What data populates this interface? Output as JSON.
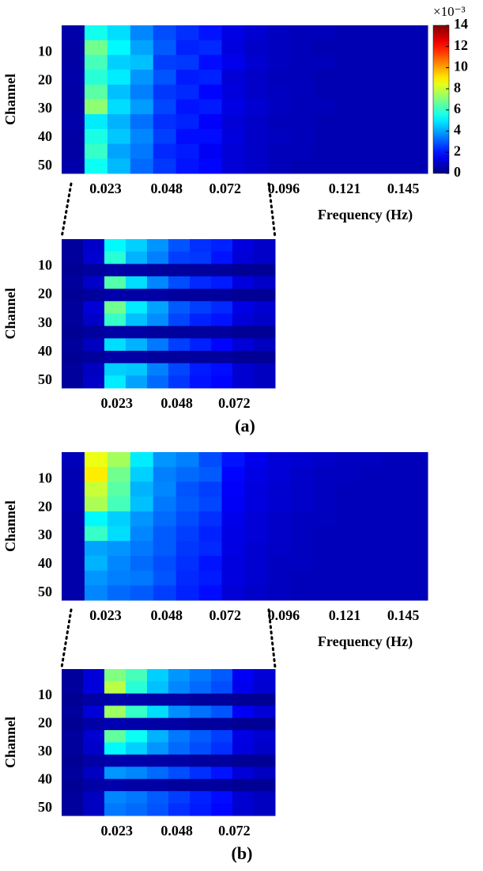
{
  "figure": {
    "captions": [
      "(a)",
      "(b)"
    ]
  },
  "chart_data": [
    {
      "type": "heatmap",
      "ylabel": "Channel",
      "xlabel": "Frequency (Hz)",
      "colormap": "jet",
      "xlim": [
        0.005,
        0.155
      ],
      "ylim": [
        0.5,
        52.5
      ],
      "xticks": [
        0.023,
        0.048,
        0.072,
        0.096,
        0.121,
        0.145
      ],
      "yticks": [
        10,
        20,
        30,
        40,
        50
      ],
      "colorbar": {
        "label": "×10⁻³",
        "clim": [
          0,
          14
        ],
        "ticks": [
          0,
          2,
          4,
          6,
          8,
          10,
          12,
          14
        ]
      },
      "values": [
        [
          0.6,
          5.5,
          4.8,
          3.6,
          2.8,
          2.4,
          2.0,
          1.4,
          1.1,
          0.9,
          0.8,
          0.8,
          0.7,
          0.7,
          0.7,
          0.7
        ],
        [
          0.5,
          6.8,
          5.2,
          4.0,
          3.0,
          2.2,
          2.3,
          1.3,
          1.0,
          0.9,
          0.8,
          0.7,
          0.7,
          0.7,
          0.7,
          0.7
        ],
        [
          0.5,
          6.2,
          4.6,
          4.4,
          2.6,
          2.5,
          1.9,
          1.5,
          1.1,
          0.9,
          0.8,
          0.8,
          0.7,
          0.7,
          0.7,
          0.7
        ],
        [
          0.6,
          5.8,
          5.0,
          3.8,
          2.9,
          2.1,
          2.2,
          1.2,
          1.0,
          0.8,
          0.8,
          0.7,
          0.7,
          0.7,
          0.7,
          0.7
        ],
        [
          0.5,
          6.5,
          4.4,
          3.5,
          2.5,
          2.3,
          1.8,
          1.3,
          1.0,
          0.9,
          0.8,
          0.7,
          0.7,
          0.7,
          0.7,
          0.7
        ],
        [
          0.5,
          7.2,
          4.8,
          3.9,
          2.7,
          2.0,
          2.1,
          1.4,
          1.1,
          0.9,
          0.8,
          0.8,
          0.7,
          0.7,
          0.7,
          0.7
        ],
        [
          0.6,
          5.0,
          4.2,
          3.3,
          2.4,
          2.2,
          1.7,
          1.2,
          1.0,
          0.8,
          0.8,
          0.7,
          0.7,
          0.7,
          0.7,
          0.7
        ],
        [
          0.5,
          5.6,
          4.5,
          3.6,
          2.6,
          1.9,
          1.9,
          1.3,
          1.0,
          0.9,
          0.8,
          0.7,
          0.7,
          0.7,
          0.7,
          0.7
        ],
        [
          0.5,
          6.0,
          4.0,
          3.4,
          2.3,
          2.1,
          1.6,
          1.2,
          1.0,
          0.8,
          0.8,
          0.7,
          0.7,
          0.7,
          0.7,
          0.7
        ],
        [
          0.6,
          5.4,
          4.3,
          3.2,
          2.5,
          2.0,
          1.8,
          1.2,
          1.0,
          0.8,
          0.7,
          0.7,
          0.7,
          0.7,
          0.7,
          0.7
        ]
      ]
    },
    {
      "type": "heatmap",
      "ylabel": "Channel",
      "colormap": "jet",
      "xlim": [
        0,
        0.089
      ],
      "ylim": [
        0.5,
        52.5
      ],
      "xticks": [
        0.023,
        0.048,
        0.072
      ],
      "yticks": [
        10,
        20,
        30,
        40,
        50
      ],
      "values": [
        [
          0.4,
          1.0,
          5.2,
          4.6,
          3.8,
          2.9,
          2.4,
          2.2,
          1.3,
          1.0
        ],
        [
          0.4,
          1.1,
          5.8,
          4.2,
          3.5,
          2.6,
          2.5,
          2.0,
          1.2,
          1.0
        ],
        [
          0.3,
          0.4,
          0.5,
          0.5,
          0.4,
          0.4,
          0.4,
          0.4,
          0.3,
          0.3
        ],
        [
          0.4,
          1.0,
          6.4,
          4.8,
          3.6,
          2.8,
          2.3,
          2.1,
          1.3,
          1.0
        ],
        [
          0.3,
          0.4,
          0.6,
          0.5,
          0.5,
          0.4,
          0.4,
          0.4,
          0.3,
          0.3
        ],
        [
          0.4,
          1.2,
          6.8,
          5.0,
          4.0,
          3.0,
          2.6,
          2.3,
          1.4,
          1.1
        ],
        [
          0.4,
          1.0,
          6.0,
          4.4,
          3.7,
          2.7,
          2.2,
          2.0,
          1.2,
          1.0
        ],
        [
          0.3,
          0.4,
          0.5,
          0.5,
          0.4,
          0.4,
          0.4,
          0.4,
          0.3,
          0.3
        ],
        [
          0.4,
          0.9,
          4.8,
          4.2,
          3.4,
          2.6,
          2.2,
          1.8,
          1.2,
          0.9
        ],
        [
          0.3,
          0.4,
          0.5,
          0.5,
          0.4,
          0.4,
          0.4,
          0.4,
          0.3,
          0.3
        ],
        [
          0.4,
          0.9,
          4.6,
          4.5,
          3.5,
          2.7,
          2.1,
          1.9,
          1.1,
          0.9
        ],
        [
          0.4,
          1.0,
          5.0,
          4.0,
          3.2,
          2.5,
          2.0,
          1.8,
          1.1,
          0.9
        ]
      ]
    },
    {
      "type": "heatmap",
      "ylabel": "Channel",
      "xlabel": "Frequency (Hz)",
      "colormap": "jet",
      "xlim": [
        0.005,
        0.155
      ],
      "ylim": [
        0.5,
        52.5
      ],
      "xticks": [
        0.023,
        0.048,
        0.072,
        0.096,
        0.121,
        0.145
      ],
      "yticks": [
        10,
        20,
        30,
        40,
        50
      ],
      "values": [
        [
          0.8,
          8.5,
          7.5,
          5.0,
          3.8,
          3.5,
          2.8,
          2.0,
          1.5,
          1.2,
          1.1,
          1.0,
          0.9,
          0.9,
          0.8,
          0.8
        ],
        [
          0.7,
          9.0,
          6.8,
          4.6,
          3.5,
          3.2,
          3.0,
          1.8,
          1.4,
          1.2,
          1.0,
          0.9,
          0.9,
          0.8,
          0.8,
          0.8
        ],
        [
          0.7,
          8.0,
          6.5,
          4.2,
          3.6,
          2.9,
          2.6,
          1.7,
          1.3,
          1.1,
          1.0,
          0.9,
          0.8,
          0.8,
          0.8,
          0.8
        ],
        [
          0.7,
          7.6,
          6.2,
          4.4,
          3.4,
          3.0,
          2.7,
          1.6,
          1.3,
          1.1,
          1.0,
          0.9,
          0.8,
          0.8,
          0.8,
          0.8
        ],
        [
          0.6,
          5.2,
          4.6,
          3.8,
          3.2,
          2.8,
          2.4,
          1.5,
          1.2,
          1.0,
          0.9,
          0.9,
          0.8,
          0.8,
          0.8,
          0.8
        ],
        [
          0.6,
          6.0,
          4.8,
          3.6,
          3.0,
          2.6,
          2.2,
          1.4,
          1.2,
          1.0,
          0.9,
          0.8,
          0.8,
          0.8,
          0.8,
          0.8
        ],
        [
          0.6,
          4.0,
          3.8,
          3.4,
          3.0,
          2.5,
          2.3,
          1.4,
          1.1,
          1.0,
          0.9,
          0.8,
          0.8,
          0.8,
          0.8,
          0.8
        ],
        [
          0.6,
          4.2,
          3.6,
          3.2,
          2.8,
          2.4,
          2.0,
          1.3,
          1.1,
          0.9,
          0.9,
          0.8,
          0.8,
          0.8,
          0.8,
          0.8
        ],
        [
          0.6,
          3.8,
          3.5,
          3.4,
          2.9,
          2.3,
          2.1,
          1.3,
          1.1,
          0.9,
          0.8,
          0.8,
          0.8,
          0.8,
          0.8,
          0.8
        ],
        [
          0.6,
          3.6,
          3.2,
          3.0,
          2.6,
          2.2,
          1.9,
          1.2,
          1.0,
          0.9,
          0.8,
          0.8,
          0.8,
          0.8,
          0.8,
          0.8
        ]
      ]
    },
    {
      "type": "heatmap",
      "ylabel": "Channel",
      "colormap": "jet",
      "xlim": [
        0,
        0.089
      ],
      "ylim": [
        0.5,
        52.5
      ],
      "xticks": [
        0.023,
        0.048,
        0.072
      ],
      "yticks": [
        10,
        20,
        30,
        40,
        50
      ],
      "values": [
        [
          0.4,
          1.2,
          7.0,
          6.2,
          4.6,
          3.8,
          3.4,
          3.0,
          1.6,
          1.2
        ],
        [
          0.4,
          1.3,
          7.8,
          5.8,
          4.4,
          3.6,
          3.2,
          2.8,
          1.5,
          1.1
        ],
        [
          0.3,
          0.5,
          0.6,
          0.6,
          0.5,
          0.5,
          0.4,
          0.4,
          0.3,
          0.3
        ],
        [
          0.4,
          1.2,
          7.4,
          6.0,
          4.8,
          3.7,
          3.3,
          2.9,
          1.6,
          1.2
        ],
        [
          0.3,
          0.5,
          0.7,
          0.6,
          0.5,
          0.5,
          0.4,
          0.4,
          0.3,
          0.3
        ],
        [
          0.4,
          1.1,
          6.6,
          5.4,
          4.2,
          3.4,
          3.0,
          2.6,
          1.4,
          1.1
        ],
        [
          0.4,
          1.0,
          5.2,
          4.6,
          3.8,
          3.2,
          2.8,
          2.4,
          1.3,
          1.0
        ],
        [
          0.3,
          0.5,
          0.6,
          0.6,
          0.5,
          0.5,
          0.4,
          0.4,
          0.3,
          0.3
        ],
        [
          0.4,
          0.9,
          3.8,
          3.6,
          3.2,
          2.8,
          2.4,
          2.0,
          1.2,
          0.9
        ],
        [
          0.3,
          0.5,
          0.6,
          0.5,
          0.5,
          0.4,
          0.4,
          0.4,
          0.3,
          0.3
        ],
        [
          0.4,
          0.9,
          3.6,
          3.4,
          3.0,
          2.6,
          2.2,
          1.9,
          1.1,
          0.9
        ],
        [
          0.4,
          0.9,
          3.4,
          3.2,
          2.9,
          2.4,
          2.1,
          1.8,
          1.1,
          0.9
        ]
      ]
    }
  ]
}
